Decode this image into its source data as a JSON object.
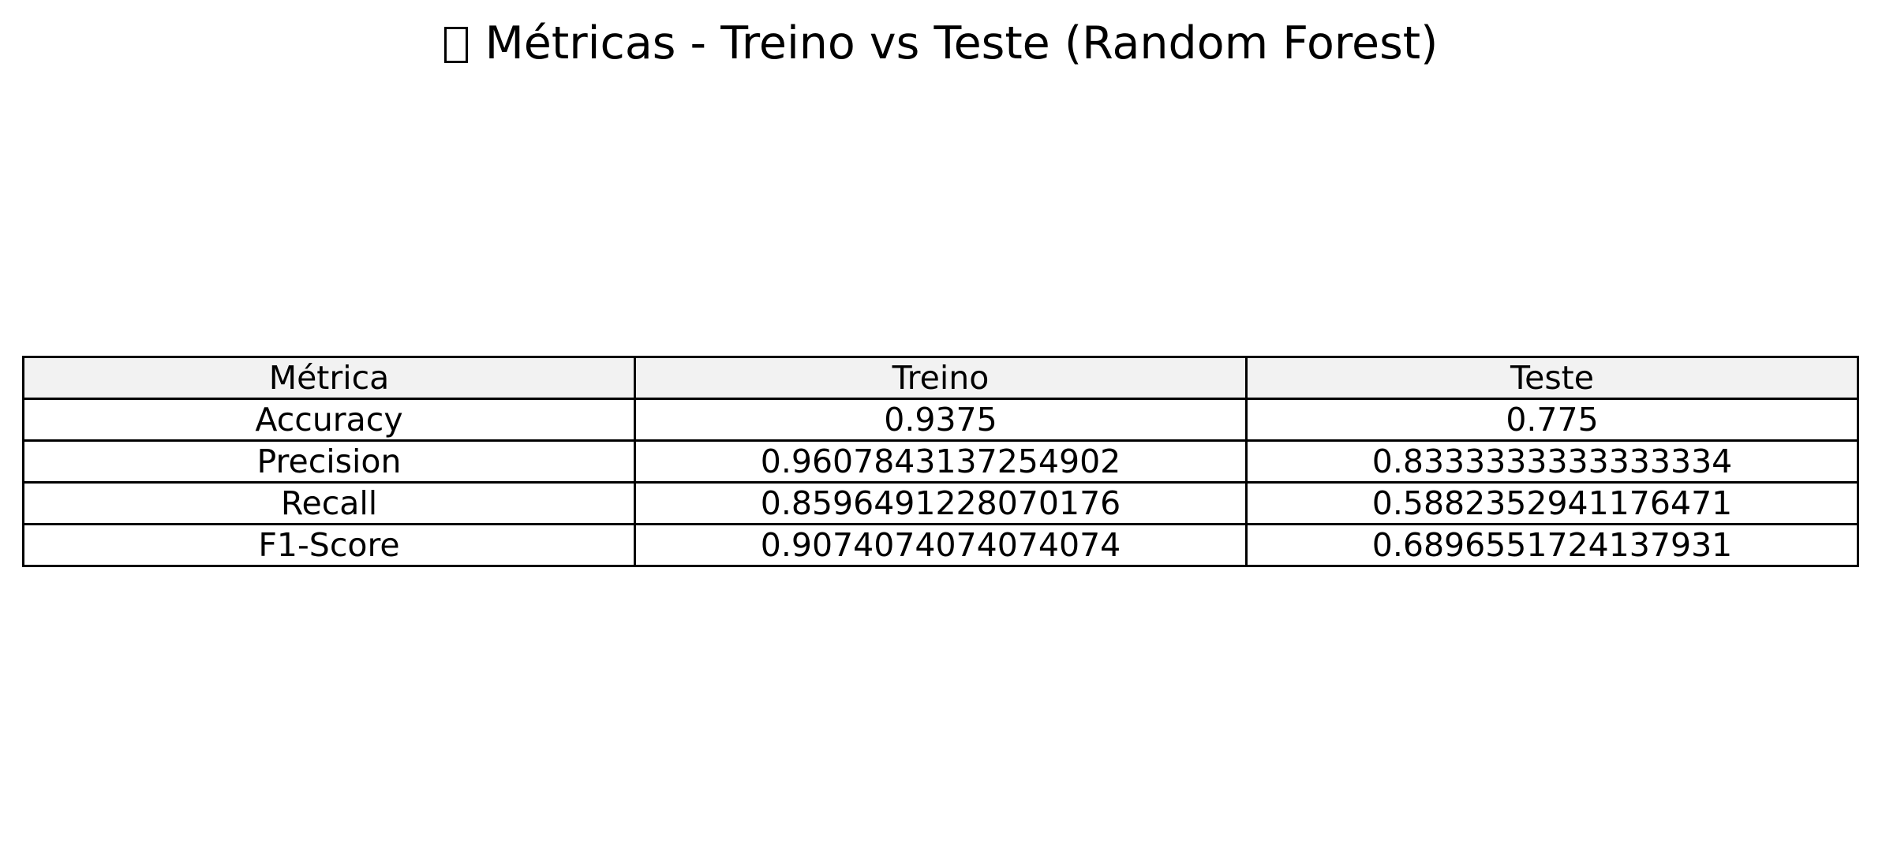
{
  "chart_data": {
    "type": "table",
    "title": "Métricas - Treino vs Teste (Random Forest)",
    "header_color": "#f2f2f2",
    "columns": [
      "Métrica",
      "Treino",
      "Teste"
    ],
    "rows": [
      [
        "Accuracy",
        "0.9375",
        "0.775"
      ],
      [
        "Precision",
        "0.9607843137254902",
        "0.8333333333333334"
      ],
      [
        "Recall",
        "0.8596491228070176",
        "0.5882352941176471"
      ],
      [
        "F1-Score",
        "0.9074074074074074",
        "0.6896551724137931"
      ]
    ]
  }
}
